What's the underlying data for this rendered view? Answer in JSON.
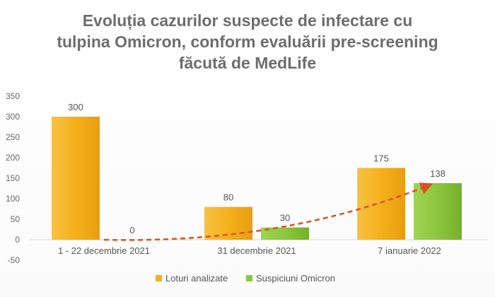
{
  "title_lines": [
    "Evoluția cazurilor suspecte de infectare cu",
    "tulpina Omicron, conform evaluării pre-screening",
    "făcută de MedLife"
  ],
  "chart_data": {
    "type": "bar",
    "title": "Evoluția cazurilor suspecte de infectare cu tulpina Omicron, conform evaluării pre-screening făcută de MedLife",
    "categories": [
      "1 - 22 decembrie 2021",
      "31 decembrie  2021",
      "7 ianuarie 2022"
    ],
    "series": [
      {
        "name": "Loturi analizate",
        "values": [
          300,
          80,
          175
        ],
        "color": "#f5b01a"
      },
      {
        "name": "Suspiciuni Omicron",
        "values": [
          0,
          30,
          138
        ],
        "color": "#8cc63e"
      }
    ],
    "data_labels": [
      [
        "300",
        "80",
        "175"
      ],
      [
        "0",
        "30",
        "138"
      ]
    ],
    "ylim": [
      -50,
      350
    ],
    "yticks": [
      -50,
      0,
      50,
      100,
      150,
      200,
      250,
      300,
      350
    ],
    "xlabel": "",
    "ylabel": "",
    "grid": false,
    "legend": "bottom",
    "trend_arrow": {
      "color": "#d9531e",
      "style": "dashed"
    }
  }
}
